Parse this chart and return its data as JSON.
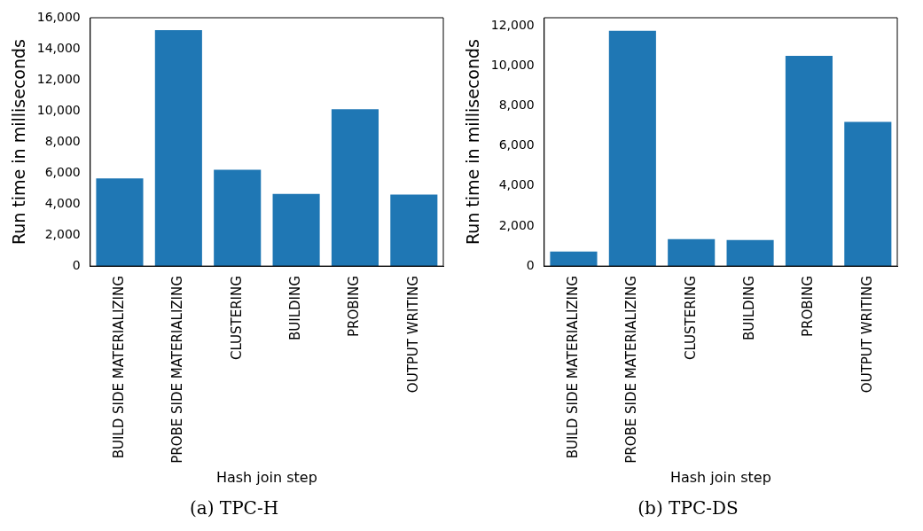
{
  "chart_data": [
    {
      "type": "bar",
      "title": "(a) TPC-H",
      "xlabel": "Hash join step",
      "ylabel": "Run time in milliseconds",
      "categories": [
        "BUILD SIDE MATERIALIZING",
        "PROBE SIDE MATERIALIZING",
        "CLUSTERING",
        "BUILDING",
        "PROBING",
        "OUTPUT WRITING"
      ],
      "values": [
        5650,
        15200,
        6200,
        4650,
        10100,
        4600
      ],
      "color": "#1f77b4",
      "ylim": [
        0,
        16000
      ],
      "yticks": [
        {
          "value": 0,
          "label": "0"
        },
        {
          "value": 2000,
          "label": "2,000"
        },
        {
          "value": 4000,
          "label": "4,000"
        },
        {
          "value": 6000,
          "label": "6,000"
        },
        {
          "value": 8000,
          "label": "8,000"
        },
        {
          "value": 10000,
          "label": "10,000"
        },
        {
          "value": 12000,
          "label": "12,000"
        },
        {
          "value": 14000,
          "label": "14,000"
        },
        {
          "value": 16000,
          "label": "16,000"
        }
      ],
      "grid": false,
      "legend": false
    },
    {
      "type": "bar",
      "title": "(b) TPC-DS",
      "xlabel": "Hash join step",
      "ylabel": "Run time in milliseconds",
      "categories": [
        "BUILD SIDE MATERIALIZING",
        "PROBE SIDE MATERIALIZING",
        "CLUSTERING",
        "BUILDING",
        "PROBING",
        "OUTPUT WRITING"
      ],
      "values": [
        720,
        11750,
        1350,
        1300,
        10500,
        7200
      ],
      "color": "#1f77b4",
      "ylim": [
        0,
        12400
      ],
      "yticks": [
        {
          "value": 0,
          "label": "0"
        },
        {
          "value": 2000,
          "label": "2,000"
        },
        {
          "value": 4000,
          "label": "4,000"
        },
        {
          "value": 6000,
          "label": "6,000"
        },
        {
          "value": 8000,
          "label": "8,000"
        },
        {
          "value": 10000,
          "label": "10,000"
        },
        {
          "value": 12000,
          "label": "12,000"
        }
      ],
      "grid": false,
      "legend": false
    }
  ]
}
